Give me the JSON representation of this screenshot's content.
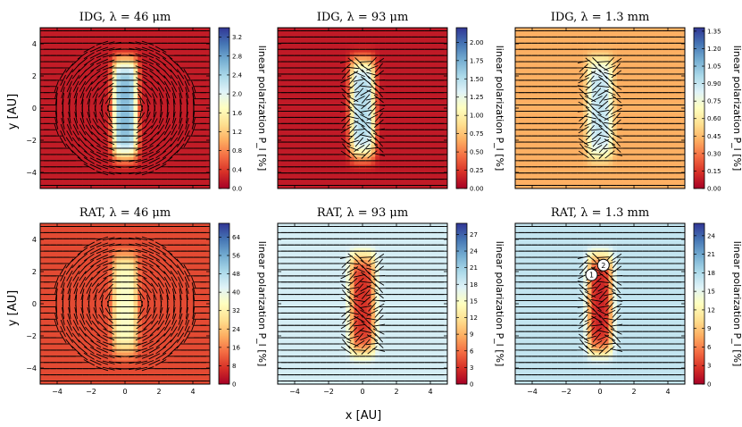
{
  "figure": {
    "xlabel": "x [AU]",
    "ylabel": "y [AU]",
    "colorbar_label": "linear polarization P_l [%]"
  },
  "chart_data": [
    {
      "type": "heatmap",
      "title": "IDG, λ = 46 μm",
      "xlim": [
        -5,
        5
      ],
      "ylim": [
        -5,
        5
      ],
      "xticks": [
        -4,
        -2,
        0,
        2,
        4
      ],
      "yticks": [
        -4,
        -2,
        0,
        2,
        4
      ],
      "show_xticklabels": false,
      "show_yticklabels": true,
      "colorbar": {
        "min": 0,
        "max": 3.4,
        "ticks": [
          "0.0",
          "0.4",
          "0.8",
          "1.2",
          "1.6",
          "2.0",
          "2.4",
          "2.8",
          "3.2"
        ]
      },
      "pattern": {
        "background": 0.2,
        "central_column": 2.6,
        "vector_style": "circular"
      }
    },
    {
      "type": "heatmap",
      "title": "IDG, λ = 93 μm",
      "xlim": [
        -5,
        5
      ],
      "ylim": [
        -5,
        5
      ],
      "xticks": [
        -4,
        -2,
        0,
        2,
        4
      ],
      "yticks": [
        -4,
        -2,
        0,
        2,
        4
      ],
      "show_xticklabels": false,
      "show_yticklabels": false,
      "colorbar": {
        "min": 0,
        "max": 2.2,
        "ticks": [
          "0.00",
          "0.25",
          "0.50",
          "0.75",
          "1.00",
          "1.25",
          "1.50",
          "1.75",
          "2.00"
        ]
      },
      "pattern": {
        "background": 0.12,
        "central_column": 1.5,
        "vector_style": "horizontal"
      }
    },
    {
      "type": "heatmap",
      "title": "IDG, λ = 1.3 mm",
      "xlim": [
        -5,
        5
      ],
      "ylim": [
        -5,
        5
      ],
      "xticks": [
        -4,
        -2,
        0,
        2,
        4
      ],
      "yticks": [
        -4,
        -2,
        0,
        2,
        4
      ],
      "show_xticklabels": false,
      "show_yticklabels": false,
      "colorbar": {
        "min": 0,
        "max": 1.38,
        "ticks": [
          "0.00",
          "0.15",
          "0.30",
          "0.45",
          "0.60",
          "0.75",
          "0.90",
          "1.05",
          "1.20",
          "1.35"
        ]
      },
      "pattern": {
        "background": 0.42,
        "central_column": 0.9,
        "vector_style": "horizontal"
      }
    },
    {
      "type": "heatmap",
      "title": "RAT, λ = 46 μm",
      "xlim": [
        -5,
        5
      ],
      "ylim": [
        -5,
        5
      ],
      "xticks": [
        -4,
        -2,
        0,
        2,
        4
      ],
      "yticks": [
        -4,
        -2,
        0,
        2,
        4
      ],
      "show_xticklabels": true,
      "show_yticklabels": true,
      "colorbar": {
        "min": 0,
        "max": 70,
        "ticks": [
          "0",
          "8",
          "16",
          "24",
          "32",
          "40",
          "48",
          "56",
          "64"
        ]
      },
      "pattern": {
        "background": 10,
        "central_column": 36,
        "vector_style": "circular"
      }
    },
    {
      "type": "heatmap",
      "title": "RAT, λ = 93 μm",
      "xlim": [
        -5,
        5
      ],
      "ylim": [
        -5,
        5
      ],
      "xticks": [
        -4,
        -2,
        0,
        2,
        4
      ],
      "yticks": [
        -4,
        -2,
        0,
        2,
        4
      ],
      "show_xticklabels": true,
      "show_yticklabels": false,
      "colorbar": {
        "min": 0,
        "max": 29,
        "ticks": [
          "0",
          "3",
          "6",
          "9",
          "12",
          "15",
          "18",
          "21",
          "24",
          "27"
        ]
      },
      "pattern": {
        "background": 18,
        "central_column": 3,
        "vector_style": "horizontal"
      }
    },
    {
      "type": "heatmap",
      "title": "RAT, λ = 1.3 mm",
      "xlim": [
        -5,
        5
      ],
      "ylim": [
        -5,
        5
      ],
      "xticks": [
        -4,
        -2,
        0,
        2,
        4
      ],
      "yticks": [
        -4,
        -2,
        0,
        2,
        4
      ],
      "show_xticklabels": true,
      "show_yticklabels": false,
      "colorbar": {
        "min": 0,
        "max": 26,
        "ticks": [
          "0",
          "3",
          "6",
          "9",
          "12",
          "15",
          "18",
          "21",
          "24"
        ]
      },
      "pattern": {
        "background": 17,
        "central_column": 2,
        "vector_style": "horizontal"
      },
      "markers": [
        {
          "label": "1",
          "x": -0.5,
          "y": 1.8
        },
        {
          "label": "2",
          "x": 0.2,
          "y": 2.4
        }
      ]
    }
  ]
}
